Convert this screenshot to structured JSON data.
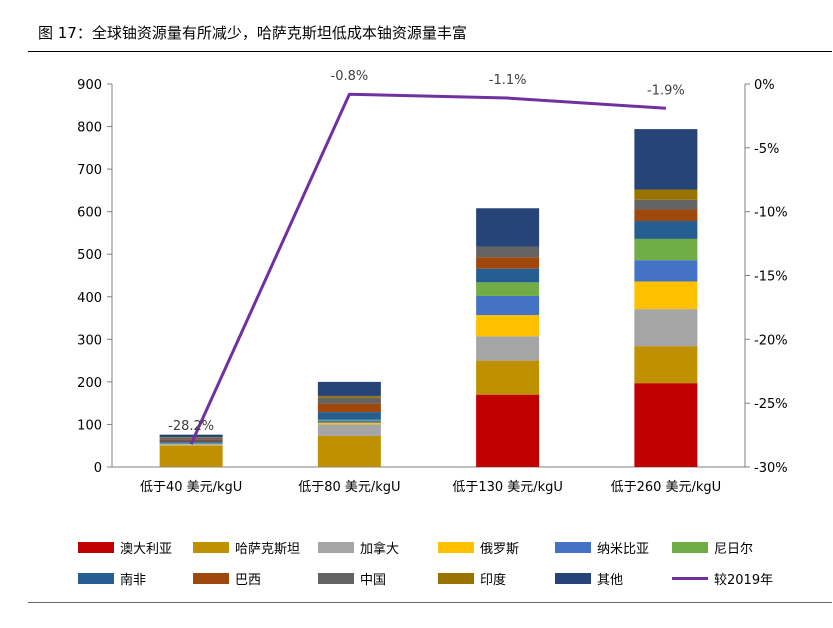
{
  "figure": {
    "title": "图 17：全球铀资源量有所减少，哈萨克斯坦低成本铀资源量丰富"
  },
  "chart_data": {
    "type": "bar",
    "stacked": true,
    "categories": [
      "低于40 美元/kgU",
      "低于80 美元/kgU",
      "低于130 美元/kgU",
      "低于260 美元/kgU"
    ],
    "ylim": [
      0,
      900
    ],
    "yticks": [
      0,
      100,
      200,
      300,
      400,
      500,
      600,
      700,
      800,
      900
    ],
    "y2lim": [
      -30,
      0
    ],
    "y2ticks": [
      "0%",
      "-5%",
      "-10%",
      "-15%",
      "-20%",
      "-25%",
      "-30%"
    ],
    "y2tick_values": [
      0,
      -5,
      -10,
      -15,
      -20,
      -25,
      -30
    ],
    "grid": false,
    "legend_position": "bottom",
    "series": [
      {
        "name": "澳大利亚",
        "color": "#C00000",
        "values": [
          0,
          0,
          170,
          197
        ]
      },
      {
        "name": "哈萨克斯坦",
        "color": "#BF9000",
        "values": [
          50,
          73,
          80,
          87
        ]
      },
      {
        "name": "加拿大",
        "color": "#A5A5A5",
        "values": [
          3,
          27,
          57,
          87
        ]
      },
      {
        "name": "俄罗斯",
        "color": "#FFC000",
        "values": [
          1,
          4,
          50,
          65
        ]
      },
      {
        "name": "纳米比亚",
        "color": "#4472C4",
        "values": [
          2,
          5,
          45,
          50
        ]
      },
      {
        "name": "尼日尔",
        "color": "#70AD47",
        "values": [
          1,
          2,
          32,
          50
        ]
      },
      {
        "name": "南非",
        "color": "#255E91",
        "values": [
          4,
          18,
          32,
          42
        ]
      },
      {
        "name": "巴西",
        "color": "#9E480E",
        "values": [
          4,
          20,
          27,
          27
        ]
      },
      {
        "name": "中国",
        "color": "#636363",
        "values": [
          4,
          14,
          25,
          23
        ]
      },
      {
        "name": "印度",
        "color": "#997300",
        "values": [
          1,
          4,
          0,
          24
        ]
      },
      {
        "name": "其他",
        "color": "#264478",
        "values": [
          6,
          33,
          90,
          142
        ]
      }
    ],
    "line": {
      "name": "较2019年",
      "color": "#7030A0",
      "axis": "right",
      "values": [
        -28.2,
        -0.8,
        -1.1,
        -1.9
      ],
      "labels": [
        "-28.2%",
        "-0.8%",
        "-1.1%",
        "-1.9%"
      ]
    }
  }
}
